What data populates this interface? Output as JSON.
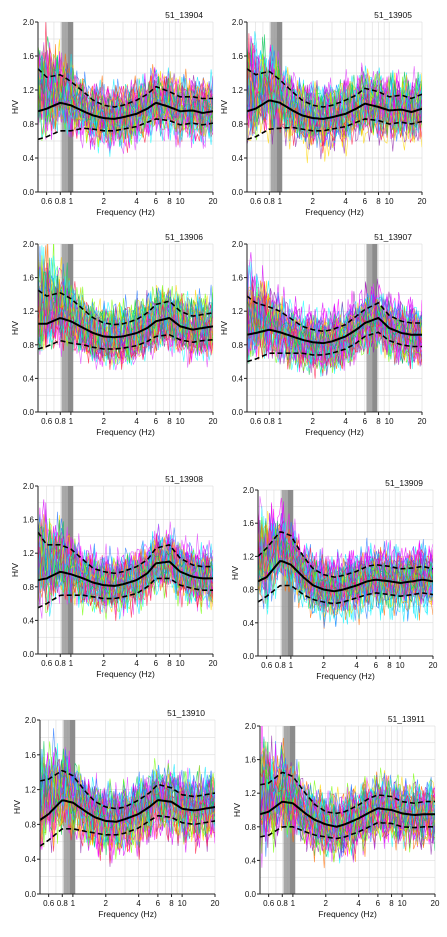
{
  "chart_data": [
    {
      "type": "line",
      "title": "51_13904",
      "xlabel": "Frequency (Hz)",
      "ylabel": "H/V",
      "xscale": "log",
      "xlim": [
        0.5,
        20
      ],
      "ylim": [
        0,
        2
      ],
      "xticklabels": [
        "0.6",
        "0.8",
        "1",
        "2",
        "4",
        "6",
        "8",
        "10",
        "20"
      ],
      "yticklabels": [
        "0.0",
        "0.4",
        "0.8",
        "1.2",
        "1.6",
        "2.0"
      ],
      "peak_band_hz": [
        0.82,
        1.05
      ],
      "mean_curve": {
        "x": [
          0.5,
          0.6,
          0.8,
          1.0,
          1.3,
          1.6,
          2,
          2.5,
          3,
          4,
          5,
          6,
          8,
          10,
          13,
          16,
          20
        ],
        "y": [
          0.95,
          0.98,
          1.05,
          1.02,
          0.95,
          0.9,
          0.87,
          0.86,
          0.88,
          0.92,
          0.98,
          1.05,
          1.0,
          0.95,
          0.96,
          0.93,
          0.95
        ]
      },
      "std_upper": {
        "x": [
          0.5,
          0.6,
          0.8,
          1.0,
          1.3,
          1.6,
          2,
          2.5,
          3,
          4,
          5,
          6,
          8,
          10,
          13,
          16,
          20
        ],
        "y": [
          1.45,
          1.35,
          1.38,
          1.3,
          1.18,
          1.08,
          1.02,
          1.0,
          1.02,
          1.08,
          1.15,
          1.24,
          1.18,
          1.12,
          1.12,
          1.1,
          1.1
        ]
      },
      "std_lower": {
        "x": [
          0.5,
          0.6,
          0.8,
          1.0,
          1.3,
          1.6,
          2,
          2.5,
          3,
          4,
          5,
          6,
          8,
          10,
          13,
          16,
          20
        ],
        "y": [
          0.62,
          0.65,
          0.72,
          0.72,
          0.75,
          0.74,
          0.72,
          0.72,
          0.74,
          0.77,
          0.82,
          0.86,
          0.84,
          0.79,
          0.81,
          0.79,
          0.81
        ]
      }
    },
    {
      "type": "line",
      "title": "51_13905",
      "xlabel": "Frequency (Hz)",
      "ylabel": "H/V",
      "xscale": "log",
      "xlim": [
        0.5,
        20
      ],
      "ylim": [
        0,
        2
      ],
      "xticklabels": [
        "0.6",
        "0.8",
        "1",
        "2",
        "4",
        "6",
        "8",
        "10",
        "20"
      ],
      "yticklabels": [
        "0.0",
        "0.4",
        "0.8",
        "1.2",
        "1.6",
        "2.0"
      ],
      "peak_band_hz": [
        0.82,
        1.05
      ],
      "mean_curve": {
        "x": [
          0.5,
          0.6,
          0.8,
          1.0,
          1.3,
          1.6,
          2,
          2.5,
          3,
          4,
          5,
          6,
          8,
          10,
          13,
          16,
          20
        ],
        "y": [
          0.95,
          0.98,
          1.08,
          1.05,
          0.96,
          0.9,
          0.87,
          0.86,
          0.88,
          0.92,
          0.98,
          1.04,
          1.0,
          0.96,
          0.97,
          0.94,
          0.98
        ]
      },
      "std_upper": {
        "x": [
          0.5,
          0.6,
          0.8,
          1.0,
          1.3,
          1.6,
          2,
          2.5,
          3,
          4,
          5,
          6,
          8,
          10,
          13,
          16,
          20
        ],
        "y": [
          1.45,
          1.38,
          1.42,
          1.32,
          1.18,
          1.08,
          1.02,
          1.0,
          1.02,
          1.08,
          1.14,
          1.22,
          1.18,
          1.12,
          1.14,
          1.1,
          1.15
        ]
      },
      "std_lower": {
        "x": [
          0.5,
          0.6,
          0.8,
          1.0,
          1.3,
          1.6,
          2,
          2.5,
          3,
          4,
          5,
          6,
          8,
          10,
          13,
          16,
          20
        ],
        "y": [
          0.62,
          0.65,
          0.74,
          0.75,
          0.76,
          0.74,
          0.72,
          0.72,
          0.74,
          0.77,
          0.82,
          0.86,
          0.84,
          0.8,
          0.82,
          0.8,
          0.83
        ]
      }
    },
    {
      "type": "line",
      "title": "51_13906",
      "xlabel": "Frequency (Hz)",
      "ylabel": "H/V",
      "xscale": "log",
      "xlim": [
        0.5,
        20
      ],
      "ylim": [
        0,
        2
      ],
      "xticklabels": [
        "0.6",
        "0.8",
        "1",
        "2",
        "4",
        "6",
        "8",
        "10",
        "20"
      ],
      "yticklabels": [
        "0.0",
        "0.4",
        "0.8",
        "1.2",
        "1.6",
        "2.0"
      ],
      "peak_band_hz": [
        0.82,
        1.05
      ],
      "mean_curve": {
        "x": [
          0.5,
          0.6,
          0.8,
          1.0,
          1.3,
          1.6,
          2,
          2.5,
          3,
          4,
          5,
          6,
          8,
          10,
          13,
          16,
          20
        ],
        "y": [
          1.05,
          1.05,
          1.12,
          1.08,
          1.0,
          0.94,
          0.9,
          0.89,
          0.9,
          0.94,
          1.0,
          1.08,
          1.12,
          1.02,
          0.98,
          1.0,
          1.02
        ]
      },
      "std_upper": {
        "x": [
          0.5,
          0.6,
          0.8,
          1.0,
          1.3,
          1.6,
          2,
          2.5,
          3,
          4,
          5,
          6,
          8,
          10,
          13,
          16,
          20
        ],
        "y": [
          1.45,
          1.38,
          1.42,
          1.35,
          1.22,
          1.12,
          1.06,
          1.04,
          1.05,
          1.1,
          1.18,
          1.28,
          1.32,
          1.2,
          1.14,
          1.16,
          1.18
        ]
      },
      "std_lower": {
        "x": [
          0.5,
          0.6,
          0.8,
          1.0,
          1.3,
          1.6,
          2,
          2.5,
          3,
          4,
          5,
          6,
          8,
          10,
          13,
          16,
          20
        ],
        "y": [
          0.75,
          0.78,
          0.85,
          0.82,
          0.8,
          0.77,
          0.75,
          0.75,
          0.76,
          0.79,
          0.84,
          0.9,
          0.92,
          0.86,
          0.83,
          0.85,
          0.86
        ]
      }
    },
    {
      "type": "line",
      "title": "51_13907",
      "xlabel": "Frequency (Hz)",
      "ylabel": "H/V",
      "xscale": "log",
      "xlim": [
        0.5,
        20
      ],
      "ylim": [
        0,
        2
      ],
      "xticklabels": [
        "0.6",
        "0.8",
        "1",
        "2",
        "4",
        "6",
        "8",
        "10",
        "20"
      ],
      "yticklabels": [
        "0.0",
        "0.4",
        "0.8",
        "1.2",
        "1.6",
        "2.0"
      ],
      "peak_band_hz": [
        6.2,
        7.8
      ],
      "mean_curve": {
        "x": [
          0.5,
          0.6,
          0.8,
          1.0,
          1.3,
          1.6,
          2,
          2.5,
          3,
          4,
          5,
          6,
          8,
          10,
          13,
          16,
          20
        ],
        "y": [
          0.92,
          0.94,
          0.98,
          0.95,
          0.9,
          0.86,
          0.83,
          0.82,
          0.84,
          0.9,
          0.98,
          1.06,
          1.12,
          1.0,
          0.94,
          0.92,
          0.92
        ]
      },
      "std_upper": {
        "x": [
          0.5,
          0.6,
          0.8,
          1.0,
          1.3,
          1.6,
          2,
          2.5,
          3,
          4,
          5,
          6,
          8,
          10,
          13,
          16,
          20
        ],
        "y": [
          1.38,
          1.3,
          1.25,
          1.2,
          1.1,
          1.02,
          0.98,
          0.96,
          0.98,
          1.04,
          1.14,
          1.22,
          1.3,
          1.15,
          1.08,
          1.06,
          1.06
        ]
      },
      "std_lower": {
        "x": [
          0.5,
          0.6,
          0.8,
          1.0,
          1.3,
          1.6,
          2,
          2.5,
          3,
          4,
          5,
          6,
          8,
          10,
          13,
          16,
          20
        ],
        "y": [
          0.6,
          0.63,
          0.7,
          0.7,
          0.7,
          0.7,
          0.68,
          0.68,
          0.7,
          0.75,
          0.82,
          0.9,
          0.95,
          0.85,
          0.8,
          0.78,
          0.78
        ]
      }
    },
    {
      "type": "line",
      "title": "51_13908",
      "xlabel": "Frequency (Hz)",
      "ylabel": "H/V",
      "xscale": "log",
      "xlim": [
        0.5,
        20
      ],
      "ylim": [
        0,
        2
      ],
      "xticklabels": [
        "0.6",
        "0.8",
        "1",
        "2",
        "4",
        "6",
        "8",
        "10",
        "20"
      ],
      "yticklabels": [
        "0.0",
        "0.4",
        "0.8",
        "1.2",
        "1.6",
        "2.0"
      ],
      "peak_band_hz": [
        0.82,
        1.05
      ],
      "mean_curve": {
        "x": [
          0.5,
          0.6,
          0.8,
          1.0,
          1.3,
          1.6,
          2,
          2.5,
          3,
          4,
          5,
          6,
          8,
          10,
          13,
          16,
          20
        ],
        "y": [
          0.88,
          0.9,
          0.98,
          0.95,
          0.9,
          0.85,
          0.82,
          0.81,
          0.83,
          0.88,
          0.96,
          1.08,
          1.1,
          0.98,
          0.92,
          0.9,
          0.9
        ]
      },
      "std_upper": {
        "x": [
          0.5,
          0.6,
          0.8,
          1.0,
          1.3,
          1.6,
          2,
          2.5,
          3,
          4,
          5,
          6,
          8,
          10,
          13,
          16,
          20
        ],
        "y": [
          1.45,
          1.3,
          1.3,
          1.25,
          1.12,
          1.02,
          0.98,
          0.96,
          0.98,
          1.04,
          1.12,
          1.26,
          1.3,
          1.14,
          1.06,
          1.04,
          1.04
        ]
      },
      "std_lower": {
        "x": [
          0.5,
          0.6,
          0.8,
          1.0,
          1.3,
          1.6,
          2,
          2.5,
          3,
          4,
          5,
          6,
          8,
          10,
          13,
          16,
          20
        ],
        "y": [
          0.55,
          0.6,
          0.7,
          0.7,
          0.7,
          0.68,
          0.66,
          0.66,
          0.68,
          0.72,
          0.8,
          0.9,
          0.9,
          0.82,
          0.78,
          0.76,
          0.76
        ]
      }
    },
    {
      "type": "line",
      "title": "51_13909",
      "xlabel": "Frequency (Hz)",
      "ylabel": "H/V",
      "xscale": "log",
      "xlim": [
        0.5,
        20
      ],
      "ylim": [
        0,
        2
      ],
      "xticklabels": [
        "0.6",
        "0.8",
        "1",
        "2",
        "4",
        "6",
        "8",
        "10",
        "20"
      ],
      "yticklabels": [
        "0.0",
        "0.4",
        "0.8",
        "1.2",
        "1.6",
        "2.0"
      ],
      "peak_band_hz": [
        0.82,
        1.05
      ],
      "mean_curve": {
        "x": [
          0.5,
          0.6,
          0.8,
          1.0,
          1.3,
          1.6,
          2,
          2.5,
          3,
          4,
          5,
          6,
          8,
          10,
          13,
          16,
          20
        ],
        "y": [
          0.9,
          0.95,
          1.15,
          1.1,
          0.95,
          0.85,
          0.8,
          0.78,
          0.8,
          0.85,
          0.9,
          0.92,
          0.9,
          0.88,
          0.9,
          0.92,
          0.9
        ]
      },
      "std_upper": {
        "x": [
          0.5,
          0.6,
          0.8,
          1.0,
          1.3,
          1.6,
          2,
          2.5,
          3,
          4,
          5,
          6,
          8,
          10,
          13,
          16,
          20
        ],
        "y": [
          1.2,
          1.3,
          1.5,
          1.45,
          1.2,
          1.05,
          0.98,
          0.95,
          0.97,
          1.02,
          1.08,
          1.1,
          1.08,
          1.05,
          1.06,
          1.08,
          1.05
        ]
      },
      "std_lower": {
        "x": [
          0.5,
          0.6,
          0.8,
          1.0,
          1.3,
          1.6,
          2,
          2.5,
          3,
          4,
          5,
          6,
          8,
          10,
          13,
          16,
          20
        ],
        "y": [
          0.65,
          0.72,
          0.85,
          0.85,
          0.74,
          0.68,
          0.65,
          0.63,
          0.65,
          0.7,
          0.74,
          0.76,
          0.74,
          0.72,
          0.74,
          0.76,
          0.74
        ]
      }
    },
    {
      "type": "line",
      "title": "51_13910",
      "xlabel": "Frequency (Hz)",
      "ylabel": "H/V",
      "xscale": "log",
      "xlim": [
        0.5,
        20
      ],
      "ylim": [
        0,
        2
      ],
      "xticklabels": [
        "0.6",
        "0.8",
        "1",
        "2",
        "4",
        "6",
        "8",
        "10",
        "20"
      ],
      "yticklabels": [
        "0.0",
        "0.4",
        "0.8",
        "1.2",
        "1.6",
        "2.0"
      ],
      "peak_band_hz": [
        0.82,
        1.05
      ],
      "mean_curve": {
        "x": [
          0.5,
          0.6,
          0.8,
          1.0,
          1.3,
          1.6,
          2,
          2.5,
          3,
          4,
          5,
          6,
          8,
          10,
          13,
          16,
          20
        ],
        "y": [
          0.85,
          0.92,
          1.08,
          1.05,
          0.95,
          0.88,
          0.84,
          0.83,
          0.86,
          0.92,
          1.0,
          1.08,
          1.06,
          0.98,
          0.96,
          0.98,
          1.0
        ]
      },
      "std_upper": {
        "x": [
          0.5,
          0.6,
          0.8,
          1.0,
          1.3,
          1.6,
          2,
          2.5,
          3,
          4,
          5,
          6,
          8,
          10,
          13,
          16,
          20
        ],
        "y": [
          1.3,
          1.32,
          1.42,
          1.36,
          1.18,
          1.06,
          1.0,
          0.98,
          1.0,
          1.08,
          1.16,
          1.26,
          1.22,
          1.14,
          1.12,
          1.14,
          1.16
        ]
      },
      "std_lower": {
        "x": [
          0.5,
          0.6,
          0.8,
          1.0,
          1.3,
          1.6,
          2,
          2.5,
          3,
          4,
          5,
          6,
          8,
          10,
          13,
          16,
          20
        ],
        "y": [
          0.55,
          0.62,
          0.75,
          0.75,
          0.72,
          0.7,
          0.68,
          0.68,
          0.7,
          0.76,
          0.84,
          0.9,
          0.88,
          0.82,
          0.8,
          0.82,
          0.84
        ]
      }
    },
    {
      "type": "line",
      "title": "51_13911",
      "xlabel": "Frequency (Hz)",
      "ylabel": "H/V",
      "xscale": "log",
      "xlim": [
        0.5,
        20
      ],
      "ylim": [
        0,
        2
      ],
      "xticklabels": [
        "0.6",
        "0.8",
        "1",
        "2",
        "4",
        "6",
        "8",
        "10",
        "20"
      ],
      "yticklabels": [
        "0.0",
        "0.4",
        "0.8",
        "1.2",
        "1.6",
        "2.0"
      ],
      "peak_band_hz": [
        0.82,
        1.05
      ],
      "mean_curve": {
        "x": [
          0.5,
          0.6,
          0.8,
          1.0,
          1.3,
          1.6,
          2,
          2.5,
          3,
          4,
          5,
          6,
          8,
          10,
          13,
          16,
          20
        ],
        "y": [
          0.95,
          0.98,
          1.1,
          1.08,
          0.96,
          0.88,
          0.83,
          0.8,
          0.83,
          0.9,
          0.97,
          1.02,
          1.0,
          0.96,
          0.94,
          0.95,
          0.95
        ]
      },
      "std_upper": {
        "x": [
          0.5,
          0.6,
          0.8,
          1.0,
          1.3,
          1.6,
          2,
          2.5,
          3,
          4,
          5,
          6,
          8,
          10,
          13,
          16,
          20
        ],
        "y": [
          1.3,
          1.32,
          1.45,
          1.4,
          1.2,
          1.06,
          0.98,
          0.96,
          0.98,
          1.06,
          1.14,
          1.18,
          1.16,
          1.1,
          1.08,
          1.1,
          1.1
        ]
      },
      "std_lower": {
        "x": [
          0.5,
          0.6,
          0.8,
          1.0,
          1.3,
          1.6,
          2,
          2.5,
          3,
          4,
          5,
          6,
          8,
          10,
          13,
          16,
          20
        ],
        "y": [
          0.68,
          0.7,
          0.8,
          0.8,
          0.74,
          0.7,
          0.68,
          0.66,
          0.68,
          0.74,
          0.8,
          0.85,
          0.84,
          0.8,
          0.79,
          0.8,
          0.8
        ]
      }
    }
  ],
  "colors": {
    "axis": "#222222",
    "grid": "#d4d4d4",
    "peak_band": "#9a9a9a",
    "mean_line": "#000000",
    "std_line": "#000000",
    "trace_palette": [
      "#e040fb",
      "#ff00ff",
      "#8e24aa",
      "#00e5ff",
      "#76ff03",
      "#ffd600",
      "#2979ff",
      "#ff1744",
      "#00c853",
      "#d500f9",
      "#ff6d00",
      "#18ffff"
    ]
  }
}
